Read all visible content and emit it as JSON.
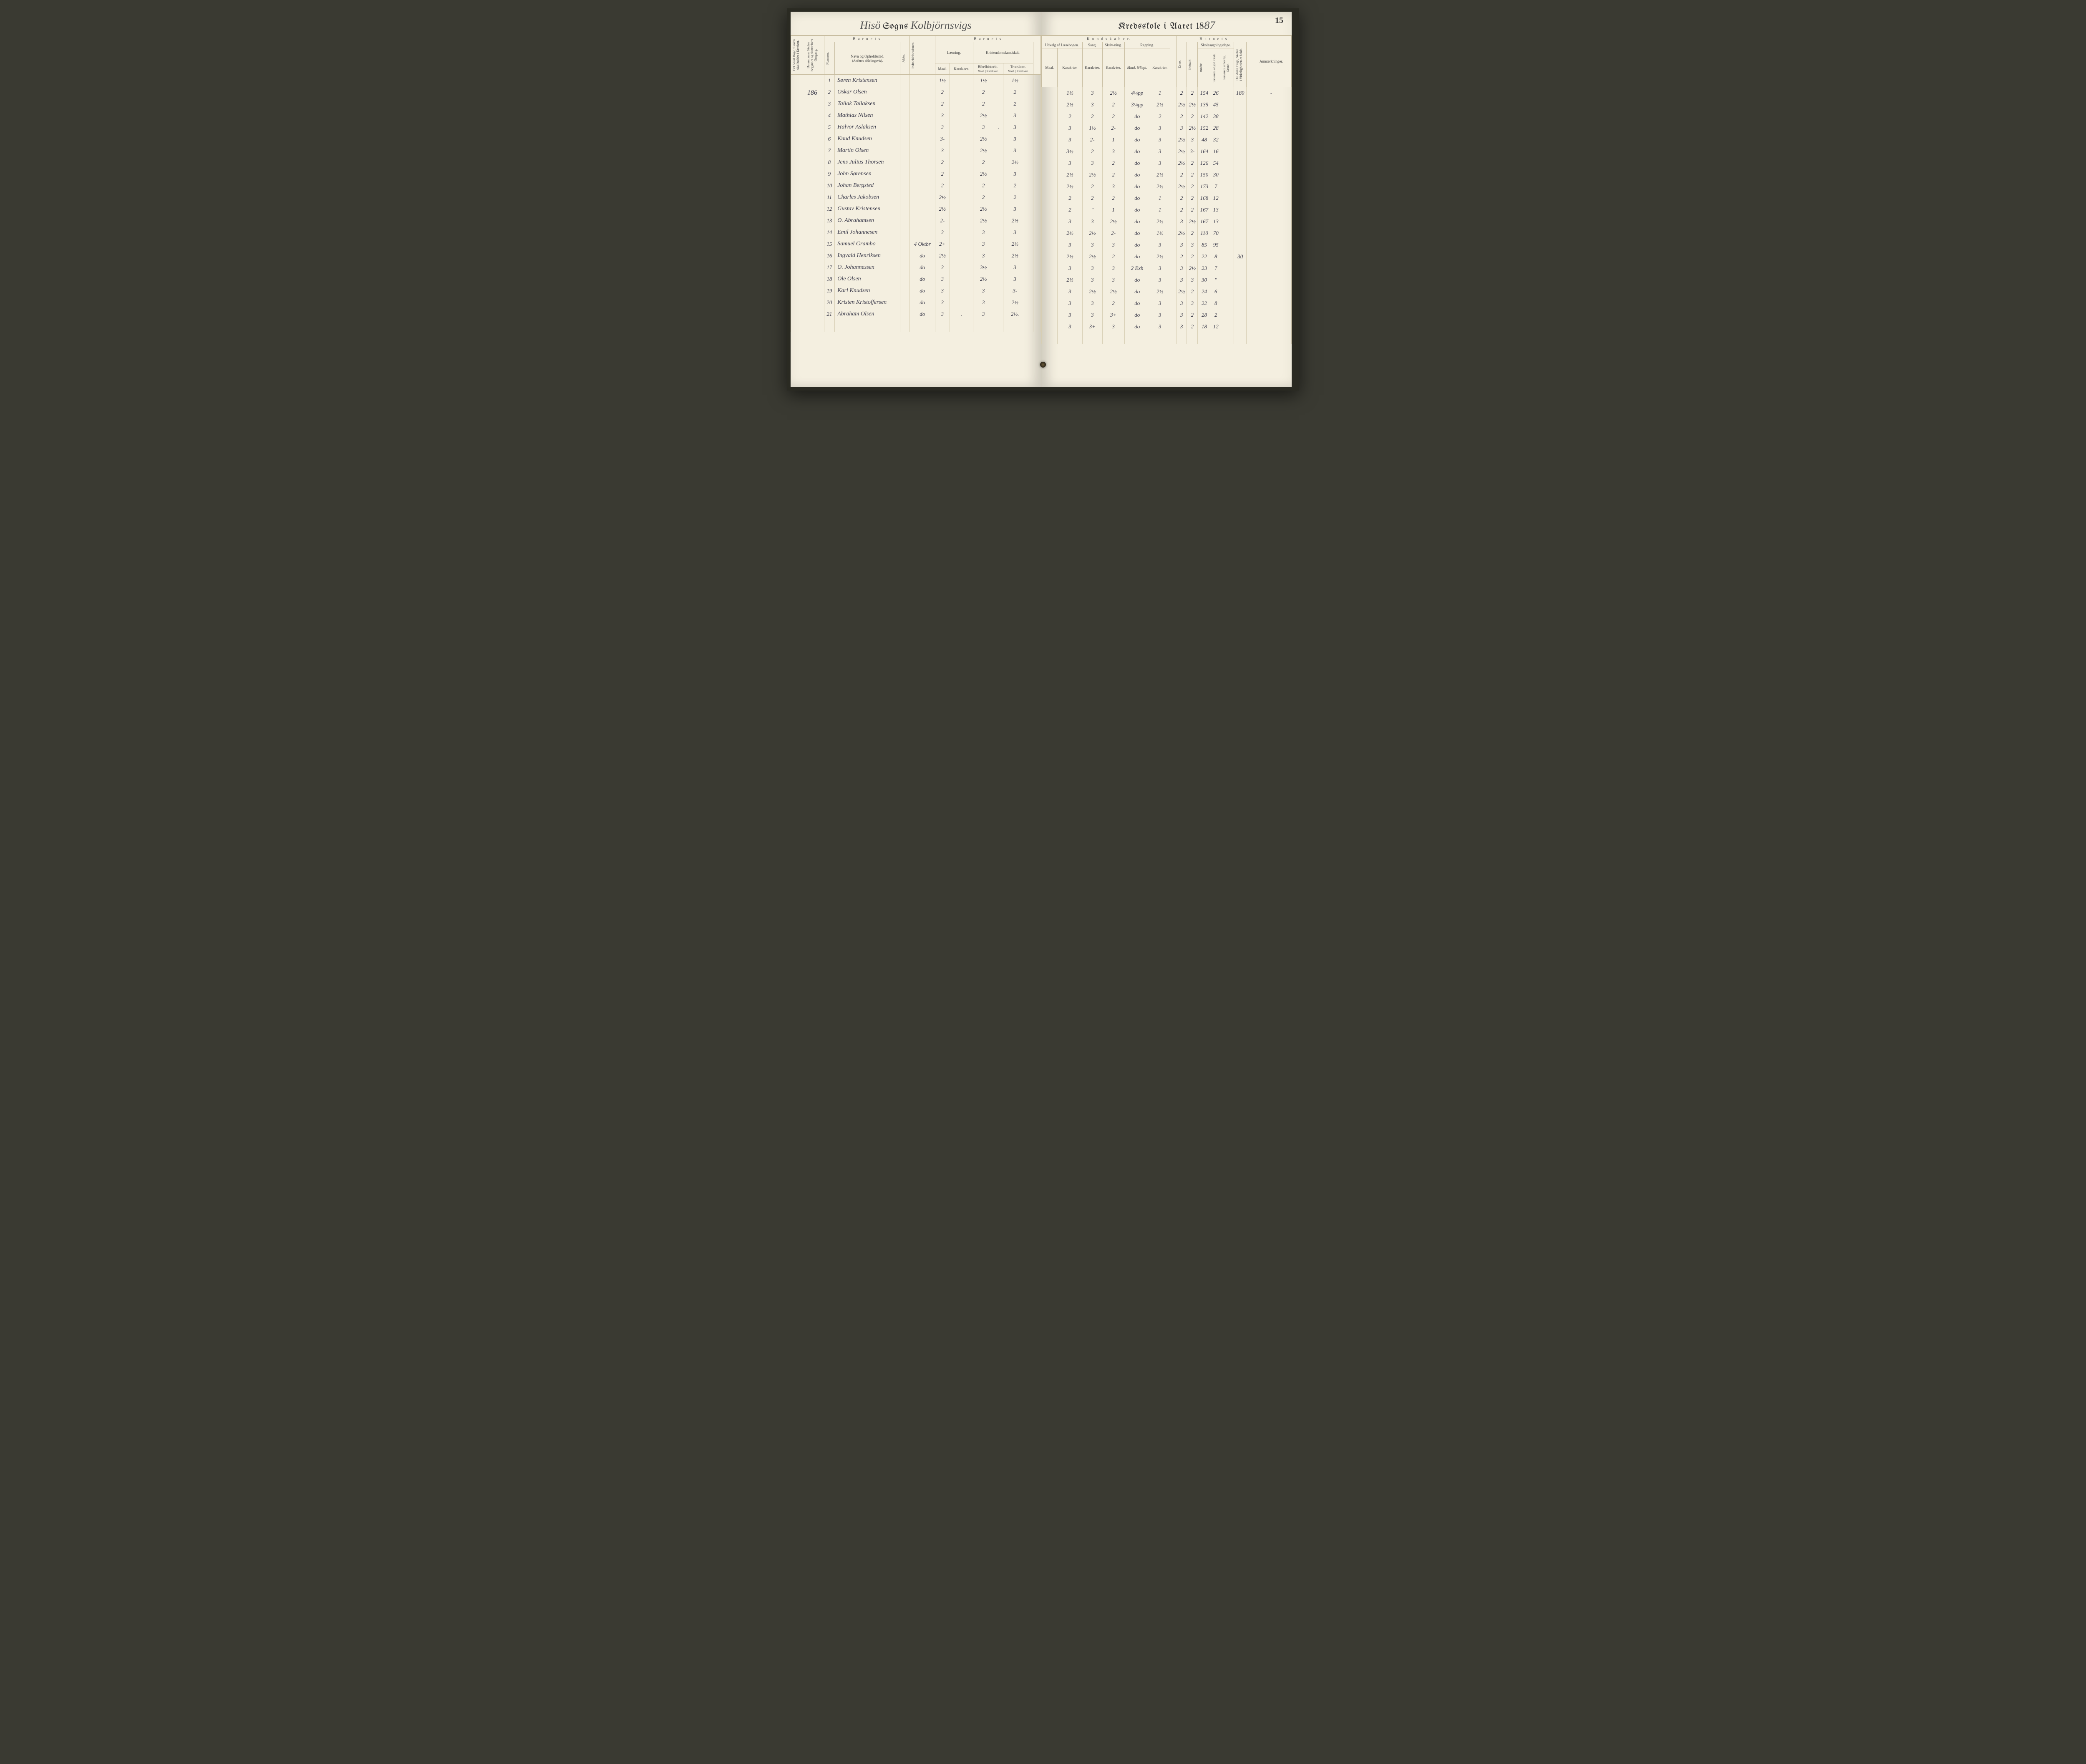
{
  "page_number": "15",
  "title_left": {
    "script1": "Hisö",
    "gothic1": "Sogns",
    "script2": "Kolbjörnsvigs"
  },
  "title_right": {
    "gothic": "Kredsskole i Aaret 18",
    "script_year": "87"
  },
  "margin_value": "186",
  "headers": {
    "barnets": "B a r n e t s",
    "kundskaber": "K u n d s k a b e r.",
    "dage_col": "Det Antal Dage, Skolen skal holdes i Kredsen.",
    "datum": "Datum, naar Skolen begynder og slutter hver Omgang.",
    "nummer": "Nummer.",
    "navn": "Navn og Opholdssted.",
    "navn_sub": "(Anføres afdelingsvis).",
    "alder": "Alder.",
    "indmeld": "Indmeldelsesdatum.",
    "laesning": "Læsning.",
    "kristendom": "Kristendomskundskab.",
    "bibel": "Bibelhistorie.",
    "troes": "Troeslære.",
    "maal": "Maal.",
    "karakter": "Karak-ter.",
    "udvalg": "Udvalg af Læsebogen.",
    "sang": "Sang.",
    "skriv": "Skriv-ning.",
    "regning": "Regning.",
    "maal_reg": "Maal. 6/Sept.",
    "evne": "Evne.",
    "forhold": "Forhold.",
    "skolesog": "Skolesøgningsdage.",
    "modte": "mødte",
    "forsomte_gyl": "forsømte af gyl. Grde.",
    "forsomte_lov": "forsømte af lovlig Grund.",
    "virkelig": "Det Antal Dage, Skolen i Virkeligheden er holdt.",
    "anm": "Anmærkninger."
  },
  "rows": [
    {
      "n": "1",
      "name": "Søren Kristensen",
      "l1": "1½",
      "l2": "",
      "b1": "1½",
      "b2": "",
      "t1": "1½",
      "t2": "",
      "u1": "",
      "u2": "1½",
      "sa": "3",
      "sk": "2½",
      "rm": "4¼pp",
      "rk": "1",
      "ev": "2",
      "fo": "2",
      "md": "154",
      "fg": "26",
      "fl": "",
      "vk": "180",
      "an": "-"
    },
    {
      "n": "2",
      "name": "Oskar Olsen",
      "l1": "2",
      "l2": "",
      "b1": "2",
      "b2": "",
      "t1": "2",
      "t2": "",
      "u1": "",
      "u2": "2½",
      "sa": "3",
      "sk": "2",
      "rm": "3¼pp",
      "rk": "2½",
      "ev": "2½",
      "fo": "2½",
      "md": "135",
      "fg": "45",
      "fl": "",
      "vk": "",
      "an": ""
    },
    {
      "n": "3",
      "name": "Tallak Tallaksen",
      "l1": "2",
      "l2": "",
      "b1": "2",
      "b2": "",
      "t1": "2",
      "t2": "",
      "u1": "",
      "u2": "2",
      "sa": "2",
      "sk": "2",
      "rm": "do",
      "rk": "2",
      "ev": "2",
      "fo": "2",
      "md": "142",
      "fg": "38",
      "fl": "",
      "vk": "",
      "an": ""
    },
    {
      "n": "4",
      "name": "Mathias Nilsen",
      "l1": "3",
      "l2": "",
      "b1": "2½",
      "b2": "",
      "t1": "3",
      "t2": "",
      "u1": "",
      "u2": "3",
      "sa": "1½",
      "sk": "2-",
      "rm": "do",
      "rk": "3",
      "ev": "3",
      "fo": "2½",
      "md": "152",
      "fg": "28",
      "fl": "",
      "vk": "",
      "an": ""
    },
    {
      "n": "5",
      "name": "Halvor Aslaksen",
      "l1": "3",
      "l2": "",
      "b1": "3",
      "b2": ".",
      "t1": "3",
      "t2": "",
      "u1": "",
      "u2": "3",
      "sa": "2-",
      "sk": "1",
      "rm": "do",
      "rk": "3",
      "ev": "2½",
      "fo": "3",
      "md": "48",
      "fg": "32",
      "fl": "",
      "vk": "",
      "an": ""
    },
    {
      "n": "6",
      "name": "Knud Knudsen",
      "l1": "3-",
      "l2": "",
      "b1": "2½",
      "b2": "",
      "t1": "3",
      "t2": "",
      "u1": "",
      "u2": "3½",
      "sa": "2",
      "sk": "3",
      "rm": "do",
      "rk": "3",
      "ev": "2½",
      "fo": "3-",
      "md": "164",
      "fg": "16",
      "fl": "",
      "vk": "",
      "an": ""
    },
    {
      "n": "7",
      "name": "Martin Olsen",
      "l1": "3",
      "l2": "",
      "b1": "2½",
      "b2": "",
      "t1": "3",
      "t2": "",
      "u1": "",
      "u2": "3",
      "sa": "3",
      "sk": "2",
      "rm": "do",
      "rk": "3",
      "ev": "2½",
      "fo": "2",
      "md": "126",
      "fg": "54",
      "fl": "",
      "vk": "",
      "an": ""
    },
    {
      "n": "8",
      "name": "Jens Julius Thorsen",
      "l1": "2",
      "l2": "",
      "b1": "2",
      "b2": "",
      "t1": "2½",
      "t2": "",
      "u1": "",
      "u2": "2½",
      "sa": "2½",
      "sk": "2",
      "rm": "do",
      "rk": "2½",
      "ev": "2",
      "fo": "2",
      "md": "150",
      "fg": "30",
      "fl": "",
      "vk": "",
      "an": ""
    },
    {
      "n": "9",
      "name": "John Sørensen",
      "l1": "2",
      "l2": "",
      "b1": "2½",
      "b2": "",
      "t1": "3",
      "t2": "",
      "u1": "",
      "u2": "2½",
      "sa": "2",
      "sk": "3",
      "rm": "do",
      "rk": "2½",
      "ev": "2½",
      "fo": "2",
      "md": "173",
      "fg": "7",
      "fl": "",
      "vk": "",
      "an": ""
    },
    {
      "n": "10",
      "name": "Johan Bergsted",
      "l1": "2",
      "l2": "",
      "b1": "2",
      "b2": "",
      "t1": "2",
      "t2": "",
      "u1": "",
      "u2": "2",
      "sa": "2",
      "sk": "2",
      "rm": "do",
      "rk": "1",
      "ev": "2",
      "fo": "2",
      "md": "168",
      "fg": "12",
      "fl": "",
      "vk": "",
      "an": ""
    },
    {
      "n": "11",
      "name": "Charles Jakobsen",
      "l1": "2½",
      "l2": "",
      "b1": "2",
      "b2": "",
      "t1": "2",
      "t2": "",
      "u1": "",
      "u2": "2",
      "sa": "\"",
      "sk": "1",
      "rm": "do",
      "rk": "1",
      "ev": "2",
      "fo": "2",
      "md": "167",
      "fg": "13",
      "fl": "",
      "vk": "",
      "an": ""
    },
    {
      "n": "12",
      "name": "Gustav Kristensen",
      "l1": "2½",
      "l2": "",
      "b1": "2½",
      "b2": "",
      "t1": "3",
      "t2": "",
      "u1": "",
      "u2": "3",
      "sa": "3",
      "sk": "2½",
      "rm": "do",
      "rk": "2½",
      "ev": "3",
      "fo": "2½",
      "md": "167",
      "fg": "13",
      "fl": "",
      "vk": "",
      "an": ""
    },
    {
      "n": "13",
      "name": "O. Abrahamsen",
      "l1": "2-",
      "l2": "",
      "b1": "2½",
      "b2": "",
      "t1": "2½",
      "t2": "",
      "u1": "",
      "u2": "2½",
      "sa": "2½",
      "sk": "2-",
      "rm": "do",
      "rk": "1½",
      "ev": "2½",
      "fo": "2",
      "md": "110",
      "fg": "70",
      "fl": "",
      "vk": "",
      "an": ""
    },
    {
      "n": "14",
      "name": "Emil Johannesen",
      "l1": "3",
      "l2": "",
      "b1": "3",
      "b2": "",
      "t1": "3",
      "t2": "",
      "u1": "",
      "u2": "3",
      "sa": "3",
      "sk": "3",
      "rm": "do",
      "rk": "3",
      "ev": "3",
      "fo": "3",
      "md": "85",
      "fg": "95",
      "fl": "",
      "vk": "",
      "an": ""
    },
    {
      "n": "15",
      "name": "Samuel Grambo",
      "ind": "4 Oktbr",
      "l1": "2+",
      "l2": "",
      "b1": "3",
      "b2": "",
      "t1": "2½",
      "t2": "",
      "u1": "",
      "u2": "2½",
      "sa": "2½",
      "sk": "2",
      "rm": "do",
      "rk": "2½",
      "ev": "2",
      "fo": "2",
      "md": "22",
      "fg": "8",
      "fl": "",
      "vk": "30",
      "an": ""
    },
    {
      "n": "16",
      "name": "Ingvald Henriksen",
      "ind": "do",
      "l1": "2½",
      "l2": "",
      "b1": "3",
      "b2": "",
      "t1": "2½",
      "t2": "",
      "u1": "",
      "u2": "3",
      "sa": "3",
      "sk": "3",
      "rm": "2 Exh",
      "rk": "3",
      "ev": "3",
      "fo": "2½",
      "md": "23",
      "fg": "7",
      "fl": "",
      "vk": "",
      "an": ""
    },
    {
      "n": "17",
      "name": "O. Johannessen",
      "ind": "do",
      "l1": "3",
      "l2": "",
      "b1": "3½",
      "b2": "",
      "t1": "3",
      "t2": "",
      "u1": "",
      "u2": "2½",
      "sa": "3",
      "sk": "3",
      "rm": "do",
      "rk": "3",
      "ev": "3",
      "fo": "3",
      "md": "30",
      "fg": "\"",
      "fl": "",
      "vk": "",
      "an": ""
    },
    {
      "n": "18",
      "name": "Ole Olsen",
      "ind": "do",
      "l1": "3",
      "l2": "",
      "b1": "2½",
      "b2": "",
      "t1": "3",
      "t2": "",
      "u1": "",
      "u2": "3",
      "sa": "2½",
      "sk": "2½",
      "rm": "do",
      "rk": "2½",
      "ev": "2½",
      "fo": "2",
      "md": "24",
      "fg": "6",
      "fl": "",
      "vk": "",
      "an": ""
    },
    {
      "n": "19",
      "name": "Karl Knudsen",
      "ind": "do",
      "l1": "3",
      "l2": "",
      "b1": "3",
      "b2": "",
      "t1": "3-",
      "t2": "",
      "u1": "",
      "u2": "3",
      "sa": "3",
      "sk": "2",
      "rm": "do",
      "rk": "3",
      "ev": "3",
      "fo": "3",
      "md": "22",
      "fg": "8",
      "fl": "",
      "vk": "",
      "an": ""
    },
    {
      "n": "20",
      "name": "Kristen Kristoffersen",
      "ind": "do",
      "l1": "3",
      "l2": "",
      "b1": "3",
      "b2": "",
      "t1": "2½",
      "t2": "",
      "u1": "",
      "u2": "3",
      "sa": "3",
      "sk": "3+",
      "rm": "do",
      "rk": "3",
      "ev": "3",
      "fo": "2",
      "md": "28",
      "fg": "2",
      "fl": "",
      "vk": "",
      "an": ""
    },
    {
      "n": "21",
      "name": "Abraham Olsen",
      "ind": "do",
      "l1": "3",
      "l2": ".",
      "b1": "3",
      "b2": "",
      "t1": "2½.",
      "t2": "",
      "u1": "",
      "u2": "3",
      "sa": "3+",
      "sk": "3",
      "rm": "do",
      "rk": "3",
      "ev": "3",
      "fo": "2",
      "md": "18",
      "fg": "12",
      "fl": "",
      "vk": "",
      "an": ""
    }
  ],
  "colors": {
    "paper": "#f4efe0",
    "rule": "#c8bda0",
    "ink": "#3a3a4a",
    "cover": "#3a3a32"
  }
}
